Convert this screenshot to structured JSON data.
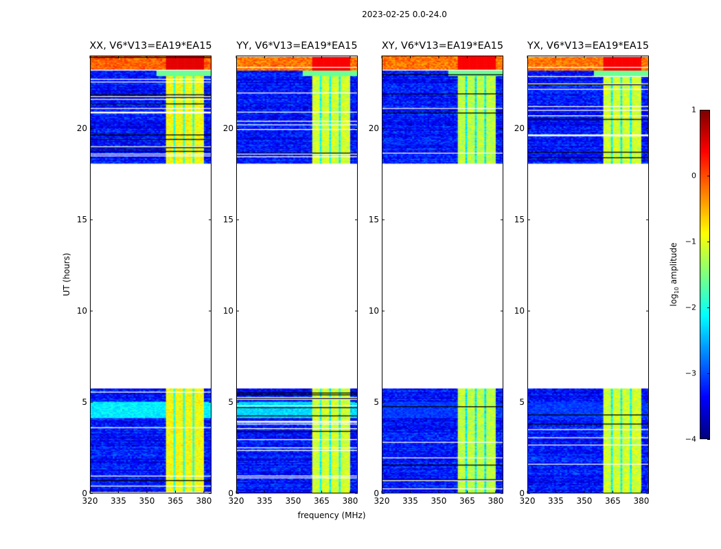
{
  "chart_data": {
    "type": "heatmap",
    "title": "2023-02-25 0.0-24.0",
    "xlabel": "frequency (MHz)",
    "ylabel": "UT (hours)",
    "xlim": [
      320,
      384
    ],
    "ylim": [
      0,
      24
    ],
    "xticks": [
      "320",
      "335",
      "350",
      "365",
      "380"
    ],
    "xtick_values": [
      320,
      335,
      350,
      365,
      380
    ],
    "yticks": [
      "0",
      "5",
      "10",
      "15",
      "20"
    ],
    "ytick_values": [
      0,
      5,
      10,
      15,
      20
    ],
    "panels": [
      {
        "title": "XX, V6*V13=EA19*EA15",
        "band_level": -0.9,
        "top_level": 0.2,
        "lowband_level": -2.2
      },
      {
        "title": "YY, V6*V13=EA19*EA15",
        "band_level": -1.1,
        "top_level": 0.1,
        "lowband_level": -2.3
      },
      {
        "title": "XY, V6*V13=EA19*EA15",
        "band_level": -1.2,
        "top_level": 0.1,
        "lowband_level": -3.1
      },
      {
        "title": "YX, V6*V13=EA19*EA15",
        "band_level": -1.1,
        "top_level": 0.1,
        "lowband_level": -3.1
      }
    ],
    "data_coverage_hours": [
      [
        0,
        5.7
      ],
      [
        18.1,
        24
      ]
    ],
    "rfi_band_mhz": [
      360.4,
      380
    ],
    "background_level": -3.3,
    "colorbar": {
      "label": "log10 amplitude",
      "label_main": "log",
      "label_sub": "10",
      "label_rest": " amplitude",
      "range": [
        -4,
        1
      ],
      "ticks": [
        "1",
        "0",
        "−1",
        "−2",
        "−3",
        "−4"
      ],
      "tick_values": [
        1,
        0,
        -1,
        -2,
        -3,
        -4
      ],
      "colormap": "jet"
    }
  }
}
